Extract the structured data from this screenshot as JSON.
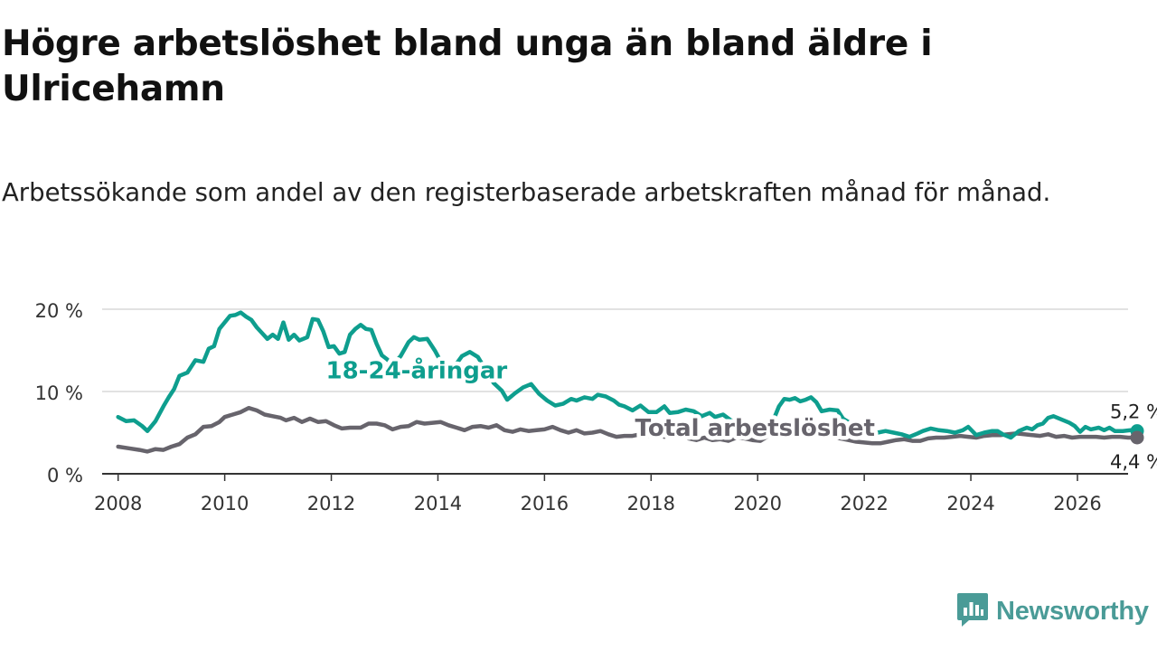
{
  "title": "Högre arbetslöshet bland unga än bland äldre i Ulricehamn",
  "subtitle": "Arbetssökande som andel av den registerbaserade arbetskraften månad för månad.",
  "brand": {
    "name": "Newsworthy",
    "icon": "bar-chart-speech-icon"
  },
  "colors": {
    "youth": "#0e9e8e",
    "total": "#67646c",
    "grid": "#d9d9d9",
    "axis": "#333333",
    "brand": "#4a9b97"
  },
  "chart_data": {
    "type": "line",
    "title": "Högre arbetslöshet bland unga än bland äldre i Ulricehamn",
    "xlabel": "",
    "ylabel": "",
    "xlim": [
      2007.7,
      2026.95
    ],
    "ylim": [
      0,
      20
    ],
    "yticks": [
      0,
      10,
      20
    ],
    "yticklabels": [
      "0 %",
      "10 %",
      "20 %"
    ],
    "xticks": [
      2008,
      2010,
      2012,
      2014,
      2016,
      2018,
      2020,
      2022,
      2024,
      2026
    ],
    "xticklabels": [
      "2008",
      "2010",
      "2012",
      "2014",
      "2016",
      "2018",
      "2020",
      "2022",
      "2024",
      "2026"
    ],
    "grid": true,
    "series": [
      {
        "name": "18-24-åringar",
        "label": "18-24-åringar",
        "end_label": "5,2 %",
        "points": [
          [
            2008.0,
            6.9
          ],
          [
            2008.15,
            6.4
          ],
          [
            2008.3,
            6.5
          ],
          [
            2008.45,
            5.8
          ],
          [
            2008.55,
            5.2
          ],
          [
            2008.7,
            6.4
          ],
          [
            2008.85,
            8.2
          ],
          [
            2008.95,
            9.3
          ],
          [
            2009.05,
            10.3
          ],
          [
            2009.15,
            11.9
          ],
          [
            2009.3,
            12.3
          ],
          [
            2009.45,
            13.8
          ],
          [
            2009.6,
            13.6
          ],
          [
            2009.7,
            15.2
          ],
          [
            2009.8,
            15.5
          ],
          [
            2009.9,
            17.6
          ],
          [
            2010.0,
            18.4
          ],
          [
            2010.1,
            19.2
          ],
          [
            2010.2,
            19.3
          ],
          [
            2010.3,
            19.6
          ],
          [
            2010.4,
            19.1
          ],
          [
            2010.5,
            18.7
          ],
          [
            2010.6,
            17.8
          ],
          [
            2010.7,
            17.1
          ],
          [
            2010.8,
            16.4
          ],
          [
            2010.9,
            16.9
          ],
          [
            2011.0,
            16.4
          ],
          [
            2011.1,
            18.4
          ],
          [
            2011.2,
            16.3
          ],
          [
            2011.3,
            16.9
          ],
          [
            2011.4,
            16.2
          ],
          [
            2011.55,
            16.6
          ],
          [
            2011.65,
            18.8
          ],
          [
            2011.75,
            18.7
          ],
          [
            2011.85,
            17.3
          ],
          [
            2011.95,
            15.4
          ],
          [
            2012.05,
            15.5
          ],
          [
            2012.15,
            14.6
          ],
          [
            2012.25,
            14.8
          ],
          [
            2012.35,
            16.9
          ],
          [
            2012.45,
            17.6
          ],
          [
            2012.55,
            18.1
          ],
          [
            2012.65,
            17.6
          ],
          [
            2012.75,
            17.5
          ],
          [
            2012.85,
            15.8
          ],
          [
            2012.95,
            14.4
          ],
          [
            2013.05,
            13.9
          ],
          [
            2013.15,
            13.2
          ],
          [
            2013.3,
            14.3
          ],
          [
            2013.45,
            16.0
          ],
          [
            2013.55,
            16.6
          ],
          [
            2013.65,
            16.3
          ],
          [
            2013.8,
            16.4
          ],
          [
            2013.95,
            14.9
          ],
          [
            2014.05,
            13.7
          ],
          [
            2014.2,
            12.8
          ],
          [
            2014.35,
            13.4
          ],
          [
            2014.45,
            14.3
          ],
          [
            2014.6,
            14.8
          ],
          [
            2014.75,
            14.2
          ],
          [
            2014.9,
            12.6
          ],
          [
            2015.05,
            11.0
          ],
          [
            2015.2,
            10.1
          ],
          [
            2015.3,
            9.0
          ],
          [
            2015.45,
            9.8
          ],
          [
            2015.6,
            10.5
          ],
          [
            2015.75,
            10.9
          ],
          [
            2015.9,
            9.7
          ],
          [
            2016.05,
            8.9
          ],
          [
            2016.2,
            8.3
          ],
          [
            2016.35,
            8.5
          ],
          [
            2016.5,
            9.1
          ],
          [
            2016.6,
            8.9
          ],
          [
            2016.75,
            9.3
          ],
          [
            2016.9,
            9.1
          ],
          [
            2017.0,
            9.6
          ],
          [
            2017.15,
            9.4
          ],
          [
            2017.3,
            8.9
          ],
          [
            2017.4,
            8.4
          ],
          [
            2017.5,
            8.2
          ],
          [
            2017.65,
            7.7
          ],
          [
            2017.8,
            8.3
          ],
          [
            2017.95,
            7.5
          ],
          [
            2018.1,
            7.5
          ],
          [
            2018.25,
            8.2
          ],
          [
            2018.35,
            7.4
          ],
          [
            2018.5,
            7.5
          ],
          [
            2018.65,
            7.8
          ],
          [
            2018.8,
            7.6
          ],
          [
            2018.95,
            7.0
          ],
          [
            2019.1,
            7.4
          ],
          [
            2019.2,
            6.9
          ],
          [
            2019.35,
            7.2
          ],
          [
            2019.5,
            6.5
          ],
          [
            2019.65,
            6.3
          ],
          [
            2019.8,
            5.7
          ],
          [
            2019.95,
            5.5
          ],
          [
            2020.1,
            5.8
          ],
          [
            2020.2,
            5.7
          ],
          [
            2020.3,
            6.6
          ],
          [
            2020.4,
            8.2
          ],
          [
            2020.5,
            9.1
          ],
          [
            2020.6,
            9.0
          ],
          [
            2020.7,
            9.2
          ],
          [
            2020.8,
            8.8
          ],
          [
            2020.9,
            9.0
          ],
          [
            2021.0,
            9.3
          ],
          [
            2021.1,
            8.7
          ],
          [
            2021.2,
            7.6
          ],
          [
            2021.35,
            7.8
          ],
          [
            2021.5,
            7.7
          ],
          [
            2021.6,
            6.7
          ],
          [
            2021.7,
            6.3
          ],
          [
            2021.8,
            5.9
          ],
          [
            2021.95,
            5.5
          ],
          [
            2022.1,
            4.9
          ],
          [
            2022.25,
            5.0
          ],
          [
            2022.4,
            5.2
          ],
          [
            2022.55,
            5.0
          ],
          [
            2022.7,
            4.8
          ],
          [
            2022.85,
            4.5
          ],
          [
            2023.0,
            4.9
          ],
          [
            2023.1,
            5.2
          ],
          [
            2023.25,
            5.5
          ],
          [
            2023.4,
            5.3
          ],
          [
            2023.55,
            5.2
          ],
          [
            2023.7,
            5.0
          ],
          [
            2023.85,
            5.3
          ],
          [
            2023.95,
            5.7
          ],
          [
            2024.1,
            4.7
          ],
          [
            2024.25,
            5.0
          ],
          [
            2024.4,
            5.2
          ],
          [
            2024.5,
            5.2
          ],
          [
            2024.6,
            4.8
          ],
          [
            2024.75,
            4.4
          ],
          [
            2024.9,
            5.2
          ],
          [
            2025.05,
            5.6
          ],
          [
            2025.15,
            5.4
          ],
          [
            2025.25,
            5.9
          ],
          [
            2025.35,
            6.1
          ],
          [
            2025.45,
            6.8
          ],
          [
            2025.55,
            7.0
          ],
          [
            2025.7,
            6.6
          ],
          [
            2025.85,
            6.2
          ],
          [
            2025.95,
            5.8
          ],
          [
            2026.05,
            5.1
          ],
          [
            2026.15,
            5.7
          ],
          [
            2026.25,
            5.4
          ],
          [
            2026.4,
            5.6
          ],
          [
            2026.5,
            5.3
          ],
          [
            2026.6,
            5.6
          ],
          [
            2026.7,
            5.2
          ],
          [
            2026.85,
            5.2
          ],
          [
            2027.0,
            5.3
          ],
          [
            2027.12,
            5.2
          ]
        ]
      },
      {
        "name": "Total arbetslöshet",
        "label": "Total arbetslöshet",
        "end_label": "4,4 %",
        "points": [
          [
            2008.0,
            3.3
          ],
          [
            2008.2,
            3.1
          ],
          [
            2008.4,
            2.9
          ],
          [
            2008.55,
            2.7
          ],
          [
            2008.7,
            3.0
          ],
          [
            2008.85,
            2.9
          ],
          [
            2009.0,
            3.3
          ],
          [
            2009.15,
            3.6
          ],
          [
            2009.3,
            4.4
          ],
          [
            2009.45,
            4.8
          ],
          [
            2009.6,
            5.7
          ],
          [
            2009.75,
            5.8
          ],
          [
            2009.9,
            6.3
          ],
          [
            2010.0,
            6.9
          ],
          [
            2010.15,
            7.2
          ],
          [
            2010.3,
            7.5
          ],
          [
            2010.45,
            8.0
          ],
          [
            2010.6,
            7.7
          ],
          [
            2010.75,
            7.2
          ],
          [
            2010.9,
            7.0
          ],
          [
            2011.05,
            6.8
          ],
          [
            2011.15,
            6.5
          ],
          [
            2011.3,
            6.8
          ],
          [
            2011.45,
            6.3
          ],
          [
            2011.6,
            6.7
          ],
          [
            2011.75,
            6.3
          ],
          [
            2011.9,
            6.4
          ],
          [
            2012.05,
            5.9
          ],
          [
            2012.2,
            5.5
          ],
          [
            2012.35,
            5.6
          ],
          [
            2012.55,
            5.6
          ],
          [
            2012.7,
            6.1
          ],
          [
            2012.85,
            6.1
          ],
          [
            2013.0,
            5.9
          ],
          [
            2013.15,
            5.4
          ],
          [
            2013.3,
            5.7
          ],
          [
            2013.45,
            5.8
          ],
          [
            2013.6,
            6.3
          ],
          [
            2013.75,
            6.1
          ],
          [
            2013.9,
            6.2
          ],
          [
            2014.05,
            6.3
          ],
          [
            2014.2,
            5.9
          ],
          [
            2014.35,
            5.6
          ],
          [
            2014.5,
            5.3
          ],
          [
            2014.65,
            5.7
          ],
          [
            2014.8,
            5.8
          ],
          [
            2014.95,
            5.6
          ],
          [
            2015.1,
            5.9
          ],
          [
            2015.25,
            5.3
          ],
          [
            2015.4,
            5.1
          ],
          [
            2015.55,
            5.4
          ],
          [
            2015.7,
            5.2
          ],
          [
            2015.85,
            5.3
          ],
          [
            2016.0,
            5.4
          ],
          [
            2016.15,
            5.7
          ],
          [
            2016.3,
            5.3
          ],
          [
            2016.45,
            5.0
          ],
          [
            2016.6,
            5.3
          ],
          [
            2016.75,
            4.9
          ],
          [
            2016.9,
            5.0
          ],
          [
            2017.05,
            5.2
          ],
          [
            2017.2,
            4.8
          ],
          [
            2017.35,
            4.5
          ],
          [
            2017.5,
            4.6
          ],
          [
            2017.65,
            4.6
          ],
          [
            2017.8,
            4.8
          ],
          [
            2017.95,
            4.6
          ],
          [
            2018.1,
            4.8
          ],
          [
            2018.25,
            4.5
          ],
          [
            2018.4,
            4.7
          ],
          [
            2018.55,
            4.8
          ],
          [
            2018.7,
            4.3
          ],
          [
            2018.85,
            4.1
          ],
          [
            2019.0,
            4.4
          ],
          [
            2019.15,
            4.1
          ],
          [
            2019.3,
            4.2
          ],
          [
            2019.45,
            4.0
          ],
          [
            2019.6,
            4.4
          ],
          [
            2019.75,
            4.3
          ],
          [
            2019.9,
            4.1
          ],
          [
            2020.05,
            4.0
          ],
          [
            2020.2,
            4.6
          ],
          [
            2020.35,
            5.3
          ],
          [
            2020.5,
            5.4
          ],
          [
            2020.65,
            5.2
          ],
          [
            2020.8,
            5.3
          ],
          [
            2020.95,
            5.2
          ],
          [
            2021.1,
            5.0
          ],
          [
            2021.25,
            4.7
          ],
          [
            2021.4,
            4.5
          ],
          [
            2021.55,
            4.3
          ],
          [
            2021.7,
            4.1
          ],
          [
            2021.85,
            3.9
          ],
          [
            2022.0,
            3.8
          ],
          [
            2022.15,
            3.7
          ],
          [
            2022.3,
            3.7
          ],
          [
            2022.45,
            3.9
          ],
          [
            2022.6,
            4.1
          ],
          [
            2022.75,
            4.2
          ],
          [
            2022.9,
            4.0
          ],
          [
            2023.05,
            4.0
          ],
          [
            2023.2,
            4.3
          ],
          [
            2023.35,
            4.4
          ],
          [
            2023.5,
            4.4
          ],
          [
            2023.65,
            4.5
          ],
          [
            2023.8,
            4.6
          ],
          [
            2023.95,
            4.5
          ],
          [
            2024.1,
            4.4
          ],
          [
            2024.25,
            4.6
          ],
          [
            2024.4,
            4.7
          ],
          [
            2024.55,
            4.7
          ],
          [
            2024.7,
            4.8
          ],
          [
            2024.85,
            4.9
          ],
          [
            2025.0,
            4.8
          ],
          [
            2025.15,
            4.7
          ],
          [
            2025.3,
            4.6
          ],
          [
            2025.45,
            4.8
          ],
          [
            2025.6,
            4.5
          ],
          [
            2025.75,
            4.6
          ],
          [
            2025.9,
            4.4
          ],
          [
            2026.05,
            4.5
          ],
          [
            2026.2,
            4.5
          ],
          [
            2026.35,
            4.5
          ],
          [
            2026.5,
            4.4
          ],
          [
            2026.65,
            4.5
          ],
          [
            2026.8,
            4.5
          ],
          [
            2026.95,
            4.4
          ],
          [
            2027.12,
            4.4
          ]
        ]
      }
    ],
    "annotations": [
      {
        "text": "18-24-åringar",
        "series": "18-24-åringar",
        "x": 2013.6,
        "y": 11.6
      },
      {
        "text": "Total arbetslöshet",
        "series": "Total arbetslöshet",
        "x": 2019.95,
        "y": 4.6
      }
    ]
  }
}
